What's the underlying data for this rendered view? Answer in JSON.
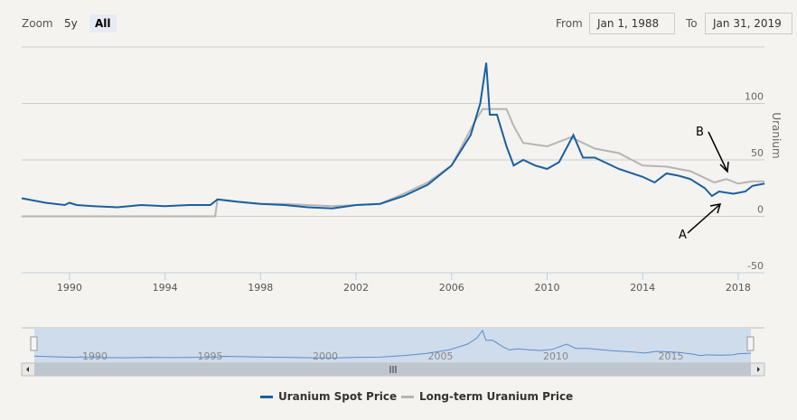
{
  "toolbar": {
    "zoom_label": "Zoom",
    "buttons": [
      "5y",
      "All"
    ],
    "selected": "All",
    "from_label": "From",
    "from_value": "Jan 1, 1988",
    "to_label": "To",
    "to_value": "Jan 31, 2019"
  },
  "colors": {
    "spot": "#1a5fa0",
    "longterm": "#b5b5b5",
    "navigator_fill": "#cfdceb"
  },
  "chart_data": {
    "type": "line",
    "title": "",
    "ylabel": "Uranium",
    "xlim": [
      1988,
      2019.1
    ],
    "ylim": [
      -50,
      150
    ],
    "yticks": [
      -50,
      0,
      50,
      100
    ],
    "xticks": [
      1990,
      1994,
      1998,
      2002,
      2006,
      2010,
      2014,
      2018
    ],
    "navigator_ticks": [
      1990,
      1995,
      2000,
      2005,
      2010,
      2015
    ],
    "annotations": [
      {
        "text": "A",
        "target": "Uranium Spot Price"
      },
      {
        "text": "B",
        "target": "Long-term Uranium Price"
      }
    ],
    "series": [
      {
        "name": "Uranium Spot Price",
        "x": [
          1988,
          1989,
          1989.8,
          1990,
          1990.3,
          1991,
          1992,
          1993,
          1994,
          1995,
          1995.9,
          1996.2,
          1997,
          1998,
          1999,
          2000,
          2001,
          2002,
          2003,
          2004,
          2005,
          2006,
          2006.8,
          2007.2,
          2007.45,
          2007.6,
          2007.9,
          2008.3,
          2008.6,
          2009,
          2009.5,
          2010,
          2010.5,
          2011.1,
          2011.5,
          2012,
          2013,
          2014,
          2014.5,
          2015,
          2015.5,
          2016,
          2016.6,
          2016.9,
          2017.2,
          2017.8,
          2018.3,
          2018.6,
          2019.1
        ],
        "y": [
          16,
          12,
          10,
          12,
          10,
          9,
          8,
          10,
          9,
          10,
          10,
          15,
          13,
          11,
          10,
          8,
          7,
          10,
          11,
          18,
          28,
          45,
          72,
          100,
          136,
          90,
          90,
          62,
          45,
          50,
          45,
          42,
          48,
          72,
          52,
          52,
          42,
          35,
          30,
          38,
          36,
          33,
          25,
          18,
          22,
          20,
          22,
          27,
          29
        ]
      },
      {
        "name": "Long-term Uranium Price",
        "x": [
          1988,
          1996.1,
          1996.2,
          1997,
          1998,
          1999,
          2000,
          2001,
          2002,
          2003,
          2004,
          2005,
          2006,
          2007,
          2007.3,
          2008.3,
          2008.6,
          2009,
          2010,
          2011,
          2011.5,
          2012,
          2013,
          2014,
          2015,
          2016,
          2017,
          2017.5,
          2018,
          2018.6,
          2019.1
        ],
        "y": [
          0,
          0,
          15,
          13,
          11,
          11,
          10,
          9,
          10,
          11,
          20,
          30,
          45,
          85,
          95,
          95,
          80,
          65,
          62,
          70,
          65,
          60,
          56,
          45,
          44,
          40,
          30,
          33,
          29,
          31,
          31
        ]
      }
    ]
  }
}
